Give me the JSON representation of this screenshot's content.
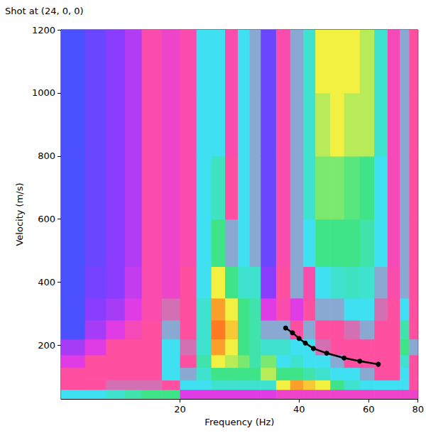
{
  "chart_data": {
    "type": "heatmap",
    "title": "Shot at (24, 0, 0)",
    "x_label": "Frequency (Hz)",
    "y_label": "Velocity (m/s)",
    "log": "x",
    "grid": false,
    "xlim": [
      10,
      80
    ],
    "xticks": [
      20,
      40,
      60,
      80
    ],
    "ylim": [
      30,
      1200
    ],
    "yticks": [
      200,
      400,
      600,
      800,
      1000,
      1200
    ],
    "frequency_edges": [
      10,
      11.5,
      13,
      14.5,
      16,
      18,
      20,
      22,
      24,
      26,
      28,
      30,
      32,
      35,
      38,
      41,
      44,
      48,
      52,
      57,
      62,
      67,
      72,
      76,
      80
    ],
    "velocity_edges": [
      30,
      60,
      90,
      130,
      170,
      220,
      280,
      350,
      450,
      600,
      800,
      1000,
      1200
    ],
    "cell_range": [
      0,
      1
    ],
    "cells": [
      [
        0.55,
        0.42,
        0.42,
        0.3,
        0.2,
        0.05,
        0.05,
        0.05,
        0.05,
        0.05,
        0.05,
        0.05
      ],
      [
        0.55,
        0.42,
        0.42,
        0.42,
        0.3,
        0.2,
        0.15,
        0.12,
        0.1,
        0.1,
        0.1,
        0.1
      ],
      [
        0.6,
        0.45,
        0.42,
        0.42,
        0.42,
        0.3,
        0.2,
        0.15,
        0.15,
        0.15,
        0.15,
        0.15
      ],
      [
        0.65,
        0.45,
        0.42,
        0.42,
        0.42,
        0.38,
        0.3,
        0.25,
        0.22,
        0.22,
        0.22,
        0.22
      ],
      [
        0.7,
        0.45,
        0.42,
        0.42,
        0.42,
        0.42,
        0.4,
        0.4,
        0.4,
        0.4,
        0.4,
        0.4
      ],
      [
        0.7,
        0.42,
        0.55,
        0.55,
        0.55,
        0.5,
        0.45,
        0.35,
        0.35,
        0.35,
        0.35,
        0.35
      ],
      [
        0.3,
        0.55,
        0.5,
        0.42,
        0.45,
        0.42,
        0.42,
        0.42,
        0.4,
        0.4,
        0.4,
        0.4
      ],
      [
        0.3,
        0.55,
        0.6,
        0.65,
        0.6,
        0.6,
        0.6,
        0.55,
        0.55,
        0.55,
        0.55,
        0.55
      ],
      [
        0.3,
        0.6,
        0.7,
        0.85,
        0.95,
        1.0,
        0.95,
        0.85,
        0.7,
        0.62,
        0.55,
        0.55
      ],
      [
        0.3,
        0.6,
        0.7,
        0.8,
        0.85,
        0.9,
        0.85,
        0.7,
        0.5,
        0.42,
        0.4,
        0.4
      ],
      [
        0.3,
        0.6,
        0.7,
        0.75,
        0.7,
        0.7,
        0.7,
        0.6,
        0.55,
        0.55,
        0.55,
        0.55
      ],
      [
        0.3,
        0.6,
        0.7,
        0.65,
        0.65,
        0.65,
        0.65,
        0.6,
        0.5,
        0.5,
        0.5,
        0.5
      ],
      [
        0.3,
        0.6,
        0.8,
        0.75,
        0.6,
        0.5,
        0.3,
        0.15,
        0.1,
        0.1,
        0.1,
        0.1
      ],
      [
        0.35,
        0.85,
        0.7,
        0.55,
        0.6,
        0.5,
        0.4,
        0.42,
        0.4,
        0.4,
        0.4,
        0.4
      ],
      [
        0.35,
        0.95,
        0.7,
        0.6,
        0.55,
        0.42,
        0.3,
        0.5,
        0.5,
        0.5,
        0.5,
        0.5
      ],
      [
        0.35,
        0.9,
        0.65,
        0.55,
        0.55,
        0.5,
        0.42,
        0.4,
        0.55,
        0.6,
        0.6,
        0.6
      ],
      [
        0.35,
        0.85,
        0.6,
        0.55,
        0.45,
        0.42,
        0.5,
        0.55,
        0.7,
        0.75,
        0.8,
        0.85
      ],
      [
        0.35,
        0.7,
        0.55,
        0.5,
        0.42,
        0.42,
        0.5,
        0.6,
        0.7,
        0.75,
        0.85,
        0.85
      ],
      [
        0.35,
        0.6,
        0.55,
        0.42,
        0.42,
        0.45,
        0.55,
        0.62,
        0.7,
        0.72,
        0.8,
        0.85
      ],
      [
        0.35,
        0.55,
        0.5,
        0.42,
        0.42,
        0.5,
        0.55,
        0.6,
        0.65,
        0.7,
        0.8,
        0.8
      ],
      [
        0.35,
        0.55,
        0.42,
        0.42,
        0.42,
        0.42,
        0.45,
        0.5,
        0.55,
        0.55,
        0.6,
        0.6
      ],
      [
        0.35,
        0.55,
        0.42,
        0.42,
        0.42,
        0.42,
        0.42,
        0.4,
        0.38,
        0.38,
        0.38,
        0.38
      ],
      [
        0.35,
        0.55,
        0.55,
        0.6,
        0.7,
        0.65,
        0.55,
        0.5,
        0.5,
        0.5,
        0.5,
        0.5
      ],
      [
        0.35,
        0.42,
        0.42,
        0.42,
        0.5,
        0.42,
        0.42,
        0.42,
        0.42,
        0.42,
        0.42,
        0.42
      ]
    ],
    "series": [
      {
        "type": "line",
        "color": "#000000",
        "marker": "circle",
        "x": [
          37,
          38.5,
          40,
          41.5,
          43.5,
          47,
          52,
          57,
          63.5
        ],
        "values": [
          255,
          240,
          222,
          207,
          190,
          175,
          160,
          150,
          140
        ]
      }
    ]
  }
}
